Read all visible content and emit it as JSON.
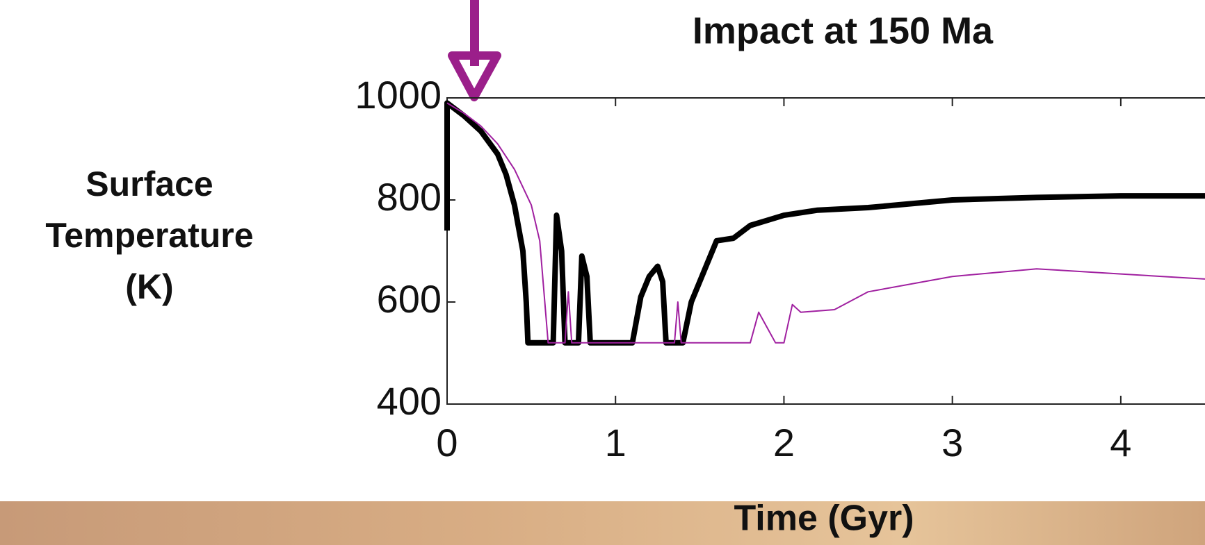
{
  "chart_data": {
    "type": "line",
    "title": "Impact at 150 Ma",
    "xlabel": "Time (Gyr)",
    "ylabel": "Surface Temperature (K)",
    "xlim": [
      0,
      4.5
    ],
    "ylim": [
      400,
      1000
    ],
    "xticks": [
      0,
      1,
      2,
      3,
      4
    ],
    "yticks": [
      400,
      600,
      800,
      1000
    ],
    "series": [
      {
        "color": "#000000",
        "x": [
          0,
          0,
          0.1,
          0.2,
          0.3,
          0.35,
          0.4,
          0.45,
          0.47,
          0.48,
          0.55,
          0.6,
          0.63,
          0.65,
          0.68,
          0.7,
          0.75,
          0.78,
          0.8,
          0.83,
          0.85,
          1.0,
          1.1,
          1.15,
          1.2,
          1.25,
          1.28,
          1.3,
          1.4,
          1.45,
          1.5,
          1.55,
          1.6,
          1.7,
          1.8,
          1.9,
          2.0,
          2.2,
          2.5,
          3.0,
          3.5,
          4.0,
          4.5
        ],
        "values": [
          740,
          990,
          965,
          935,
          890,
          850,
          790,
          700,
          600,
          520,
          520,
          520,
          520,
          770,
          700,
          520,
          520,
          520,
          690,
          650,
          520,
          520,
          520,
          610,
          650,
          670,
          640,
          520,
          520,
          600,
          640,
          680,
          720,
          725,
          750,
          760,
          770,
          780,
          785,
          800,
          805,
          808,
          808
        ]
      },
      {
        "color": "#a020a0",
        "x": [
          0,
          0.1,
          0.2,
          0.3,
          0.4,
          0.5,
          0.55,
          0.58,
          0.6,
          0.7,
          0.72,
          0.74,
          1.0,
          1.35,
          1.37,
          1.39,
          1.8,
          1.85,
          1.9,
          1.95,
          2.0,
          2.05,
          2.1,
          2.3,
          2.5,
          3.0,
          3.5,
          4.0,
          4.5
        ],
        "values": [
          990,
          970,
          945,
          910,
          860,
          790,
          720,
          600,
          520,
          520,
          620,
          520,
          520,
          520,
          600,
          520,
          520,
          580,
          550,
          520,
          520,
          595,
          580,
          585,
          620,
          650,
          665,
          655,
          645
        ]
      }
    ]
  }
}
